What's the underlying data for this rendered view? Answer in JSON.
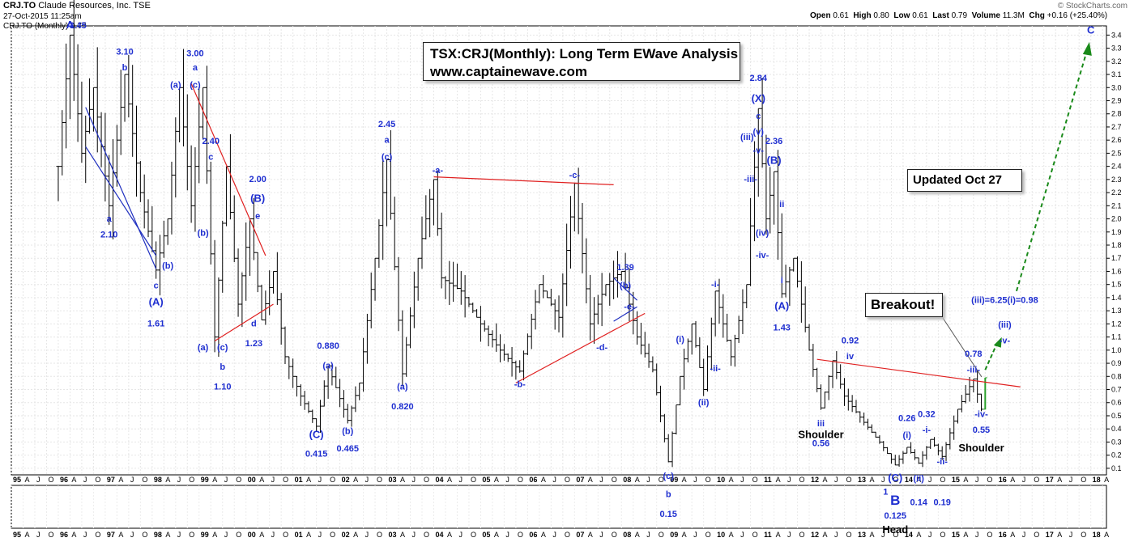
{
  "header": {
    "symbol": "CRJ.TO",
    "company": "Claude Resources, Inc.",
    "exchange": "TSE",
    "date": "27-Oct-2015 11:25am",
    "series_label": "CRJ.TO (Monthly) 0.79",
    "open_label": "Open",
    "open": "0.61",
    "high_label": "High",
    "high": "0.80",
    "low_label": "Low",
    "low": "0.61",
    "last_label": "Last",
    "last": "0.79",
    "volume_label": "Volume",
    "volume": "11.3M",
    "chg_label": "Chg",
    "chg": "+0.16 (+25.40%)",
    "watermark": "© StockCharts.com"
  },
  "title_lines": [
    "TSX:CRJ(Monthly): Long Term EWave Analysis",
    "www.captainewave.com"
  ],
  "updated": "Updated Oct 27",
  "breakout": "Breakout!",
  "chart_data": {
    "type": "ohlc",
    "interval": "monthly",
    "x_tick_labels": [
      "95",
      "A",
      "J",
      "O",
      "96",
      "A",
      "J",
      "O",
      "97",
      "A",
      "J",
      "O",
      "98",
      "A",
      "J",
      "O",
      "99",
      "A",
      "J",
      "O",
      "00",
      "A",
      "J",
      "O",
      "01",
      "A",
      "J",
      "O",
      "02",
      "A",
      "J",
      "O",
      "03",
      "A",
      "J",
      "O",
      "04",
      "A",
      "J",
      "O",
      "05",
      "A",
      "J",
      "O",
      "06",
      "A",
      "J",
      "O",
      "07",
      "A",
      "J",
      "O",
      "08",
      "A",
      "J",
      "O",
      "09",
      "A",
      "J",
      "O",
      "10",
      "A",
      "J",
      "O",
      "11",
      "A",
      "J",
      "O",
      "12",
      "A",
      "J",
      "O",
      "13",
      "A",
      "J",
      "O",
      "14",
      "A",
      "J",
      "O",
      "15",
      "A",
      "J",
      "O",
      "16",
      "A",
      "J",
      "O",
      "17",
      "A",
      "J",
      "O",
      "18",
      "A"
    ],
    "y_ticks": [
      0.1,
      0.2,
      0.3,
      0.4,
      0.5,
      0.6,
      0.7,
      0.8,
      0.9,
      1.0,
      1.1,
      1.2,
      1.3,
      1.4,
      1.5,
      1.6,
      1.7,
      1.8,
      1.9,
      2.0,
      2.1,
      2.2,
      2.3,
      2.4,
      2.5,
      2.6,
      2.7,
      2.8,
      2.9,
      3.0,
      3.1,
      3.2,
      3.3,
      3.4
    ],
    "ylim": [
      0.05,
      3.47
    ],
    "xlim": [
      "1995-01",
      "2018-05"
    ],
    "anchors": [
      [
        "1996-01",
        2.4
      ],
      [
        "1996-04",
        3.4
      ],
      [
        "1996-07",
        2.5
      ],
      [
        "1996-10",
        3.0
      ],
      [
        "1997-02",
        2.1
      ],
      [
        "1997-06",
        3.1
      ],
      [
        "1997-10",
        2.2
      ],
      [
        "1998-02",
        1.61
      ],
      [
        "1998-05",
        2.0
      ],
      [
        "1998-08",
        3.0
      ],
      [
        "1998-11",
        2.1
      ],
      [
        "1999-02",
        3.0
      ],
      [
        "1999-05",
        1.1
      ],
      [
        "1999-08",
        2.4
      ],
      [
        "1999-11",
        1.35
      ],
      [
        "2000-02",
        2.0
      ],
      [
        "2000-05",
        1.23
      ],
      [
        "2000-08",
        1.6
      ],
      [
        "2000-11",
        0.95
      ],
      [
        "2001-03",
        0.65
      ],
      [
        "2001-07",
        0.42
      ],
      [
        "2001-10",
        0.88
      ],
      [
        "2002-03",
        0.465
      ],
      [
        "2002-06",
        0.75
      ],
      [
        "2002-10",
        1.7
      ],
      [
        "2003-01",
        2.45
      ],
      [
        "2003-05",
        0.82
      ],
      [
        "2003-09",
        1.7
      ],
      [
        "2004-01",
        2.3
      ],
      [
        "2004-03",
        1.55
      ],
      [
        "2004-08",
        1.45
      ],
      [
        "2005-01",
        1.2
      ],
      [
        "2005-06",
        1.0
      ],
      [
        "2005-11",
        0.84
      ],
      [
        "2006-04",
        1.5
      ],
      [
        "2006-09",
        1.25
      ],
      [
        "2007-01",
        2.27
      ],
      [
        "2007-05",
        1.2
      ],
      [
        "2007-09",
        1.5
      ],
      [
        "2008-01",
        1.6
      ],
      [
        "2008-05",
        1.1
      ],
      [
        "2008-09",
        0.85
      ],
      [
        "2009-01",
        0.15
      ],
      [
        "2009-04",
        0.8
      ],
      [
        "2009-07",
        1.2
      ],
      [
        "2009-10",
        0.7
      ],
      [
        "2010-01",
        1.45
      ],
      [
        "2010-05",
        0.95
      ],
      [
        "2010-09",
        1.5
      ],
      [
        "2010-12",
        2.84
      ],
      [
        "2011-02",
        2.0
      ],
      [
        "2011-04",
        2.36
      ],
      [
        "2011-06",
        1.43
      ],
      [
        "2011-09",
        1.7
      ],
      [
        "2012-01",
        1.0
      ],
      [
        "2012-04",
        0.56
      ],
      [
        "2012-07",
        0.92
      ],
      [
        "2012-10",
        0.65
      ],
      [
        "2013-03",
        0.45
      ],
      [
        "2013-07",
        0.3
      ],
      [
        "2013-11",
        0.125
      ],
      [
        "2014-02",
        0.26
      ],
      [
        "2014-05",
        0.14
      ],
      [
        "2014-08",
        0.32
      ],
      [
        "2014-11",
        0.19
      ],
      [
        "2015-03",
        0.55
      ],
      [
        "2015-07",
        0.78
      ],
      [
        "2015-09",
        0.55
      ],
      [
        "2015-10",
        0.79
      ]
    ],
    "wave_labels": [
      {
        "t": "1996-04",
        "v": 3.45,
        "text": "A",
        "big": true
      },
      {
        "t": "1996-06",
        "v": 3.45,
        "text": "3.45"
      },
      {
        "t": "1997-06",
        "v": 3.25,
        "text": "3.10"
      },
      {
        "t": "1997-06",
        "v": 3.13,
        "text": "b"
      },
      {
        "t": "1997-02",
        "v": 1.98,
        "text": "a"
      },
      {
        "t": "1997-02",
        "v": 1.86,
        "text": "2.10"
      },
      {
        "t": "1998-02",
        "v": 1.47,
        "text": "c"
      },
      {
        "t": "1998-02",
        "v": 1.34,
        "text": "(A)",
        "big": true
      },
      {
        "t": "1998-02",
        "v": 1.18,
        "text": "1.61"
      },
      {
        "t": "1998-05",
        "v": 1.62,
        "text": "(b)"
      },
      {
        "t": "1998-07",
        "v": 3.0,
        "text": "(a)"
      },
      {
        "t": "1998-12",
        "v": 3.24,
        "text": "3.00"
      },
      {
        "t": "1998-12",
        "v": 3.13,
        "text": "a"
      },
      {
        "t": "1998-12",
        "v": 3.0,
        "text": "(c)"
      },
      {
        "t": "1999-04",
        "v": 2.57,
        "text": "2.40"
      },
      {
        "t": "1999-04",
        "v": 2.45,
        "text": "c"
      },
      {
        "t": "1999-02",
        "v": 1.87,
        "text": "(b)"
      },
      {
        "t": "1999-02",
        "v": 1.0,
        "text": "(a)"
      },
      {
        "t": "1999-07",
        "v": 1.0,
        "text": "(c)"
      },
      {
        "t": "1999-07",
        "v": 0.85,
        "text": "b"
      },
      {
        "t": "1999-07",
        "v": 0.7,
        "text": "1.10"
      },
      {
        "t": "2000-04",
        "v": 2.28,
        "text": "2.00"
      },
      {
        "t": "2000-04",
        "v": 2.13,
        "text": "(B)",
        "big": true
      },
      {
        "t": "2000-04",
        "v": 2.0,
        "text": "e"
      },
      {
        "t": "2000-03",
        "v": 1.18,
        "text": "d"
      },
      {
        "t": "2000-03",
        "v": 1.03,
        "text": "1.23"
      },
      {
        "t": "2001-10",
        "v": 1.01,
        "text": "0.880"
      },
      {
        "t": "2001-10",
        "v": 0.86,
        "text": "(a)"
      },
      {
        "t": "2001-07",
        "v": 0.33,
        "text": "(C)",
        "big": true
      },
      {
        "t": "2001-07",
        "v": 0.19,
        "text": "0.415"
      },
      {
        "t": "2002-03",
        "v": 0.36,
        "text": "(b)"
      },
      {
        "t": "2002-03",
        "v": 0.23,
        "text": "0.465"
      },
      {
        "t": "2003-01",
        "v": 2.7,
        "text": "2.45"
      },
      {
        "t": "2003-01",
        "v": 2.58,
        "text": "a"
      },
      {
        "t": "2003-01",
        "v": 2.45,
        "text": "(c)"
      },
      {
        "t": "2003-05",
        "v": 0.7,
        "text": "(a)"
      },
      {
        "t": "2003-05",
        "v": 0.55,
        "text": "0.820"
      },
      {
        "t": "2004-02",
        "v": 2.35,
        "text": "-a-"
      },
      {
        "t": "2005-11",
        "v": 0.72,
        "text": "-b-"
      },
      {
        "t": "2007-01",
        "v": 2.31,
        "text": "-c-"
      },
      {
        "t": "2007-08",
        "v": 1.0,
        "text": "-d-"
      },
      {
        "t": "2008-02",
        "v": 1.61,
        "text": "1.39"
      },
      {
        "t": "2008-02",
        "v": 1.47,
        "text": "(b)"
      },
      {
        "t": "2008-03",
        "v": 1.31,
        "text": "-e-"
      },
      {
        "t": "2009-01",
        "v": 0.02,
        "text": "(c)"
      },
      {
        "t": "2009-01",
        "v": -0.12,
        "text": "b"
      },
      {
        "t": "2009-01",
        "v": -0.27,
        "text": "0.15"
      },
      {
        "t": "2009-04",
        "v": 1.06,
        "text": "(i)"
      },
      {
        "t": "2009-10",
        "v": 0.58,
        "text": "(ii)"
      },
      {
        "t": "2010-01",
        "v": 1.48,
        "text": "-i-"
      },
      {
        "t": "2010-01",
        "v": 0.84,
        "text": "-ii-"
      },
      {
        "t": "2010-12",
        "v": 3.05,
        "text": "2.84"
      },
      {
        "t": "2010-12",
        "v": 2.89,
        "text": "(X)",
        "big": true
      },
      {
        "t": "2010-12",
        "v": 2.76,
        "text": "c"
      },
      {
        "t": "2010-12",
        "v": 2.64,
        "text": "(v)"
      },
      {
        "t": "2010-12",
        "v": 2.5,
        "text": "-v-"
      },
      {
        "t": "2010-12",
        "v": 2.6,
        "text": "(iii)",
        "dx": -14
      },
      {
        "t": "2010-10",
        "v": 2.28,
        "text": "-iii-"
      },
      {
        "t": "2011-01",
        "v": 1.87,
        "text": "(iv)"
      },
      {
        "t": "2011-01",
        "v": 1.7,
        "text": "-iv-"
      },
      {
        "t": "2011-04",
        "v": 2.57,
        "text": "2.36"
      },
      {
        "t": "2011-04",
        "v": 2.42,
        "text": "(B)",
        "big": true
      },
      {
        "t": "2011-06",
        "v": 2.09,
        "text": "ii"
      },
      {
        "t": "2011-06",
        "v": 1.51,
        "text": "i"
      },
      {
        "t": "2011-06",
        "v": 1.31,
        "text": "(A)",
        "big": true
      },
      {
        "t": "2011-06",
        "v": 1.15,
        "text": "1.43"
      },
      {
        "t": "2012-04",
        "v": 1.05,
        "text": "0.92",
        "dx": 36
      },
      {
        "t": "2012-04",
        "v": 0.93,
        "text": "iv",
        "dx": 36
      },
      {
        "t": "2012-04",
        "v": 0.42,
        "text": "iii"
      },
      {
        "t": "2012-04",
        "v": 0.27,
        "text": "0.56"
      },
      {
        "t": "2014-02",
        "v": 0.46,
        "text": "0.26"
      },
      {
        "t": "2014-02",
        "v": 0.33,
        "text": "(i)"
      },
      {
        "t": "2014-07",
        "v": 0.49,
        "text": "0.32"
      },
      {
        "t": "2014-07",
        "v": 0.37,
        "text": "-i-"
      },
      {
        "t": "2014-05",
        "v": 0.0,
        "text": "(ii)"
      },
      {
        "t": "2014-05",
        "v": -0.18,
        "text": "0.14"
      },
      {
        "t": "2014-11",
        "v": 0.13,
        "text": "-ii-"
      },
      {
        "t": "2014-11",
        "v": -0.18,
        "text": "0.19"
      },
      {
        "t": "2013-11",
        "v": 0.0,
        "text": "(C)",
        "big": true
      },
      {
        "t": "2013-11",
        "v": -0.1,
        "text": "1",
        "dx": -12
      },
      {
        "t": "2015-07",
        "v": 0.95,
        "text": "0.78"
      },
      {
        "t": "2015-07",
        "v": 0.83,
        "text": "-iii-"
      },
      {
        "t": "2015-09",
        "v": 0.49,
        "text": "-iv-"
      },
      {
        "t": "2015-09",
        "v": 0.37,
        "text": "0.55"
      },
      {
        "t": "2016-03",
        "v": 1.36,
        "text": "(iii)=6.25(i)=0.98"
      },
      {
        "t": "2016-03",
        "v": 1.17,
        "text": "(iii)"
      },
      {
        "t": "2016-03",
        "v": 1.05,
        "text": "-v-"
      },
      {
        "t": "2018-01",
        "v": 3.41,
        "text": "C",
        "big": true
      }
    ],
    "black_labels": [
      {
        "t": "2012-04",
        "v": 0.33,
        "text": "Shoulder"
      },
      {
        "t": "2015-09",
        "v": 0.23,
        "text": "Shoulder"
      }
    ],
    "b_below": {
      "text": "B",
      "value_text": "0.125",
      "head_text": "Head"
    }
  }
}
